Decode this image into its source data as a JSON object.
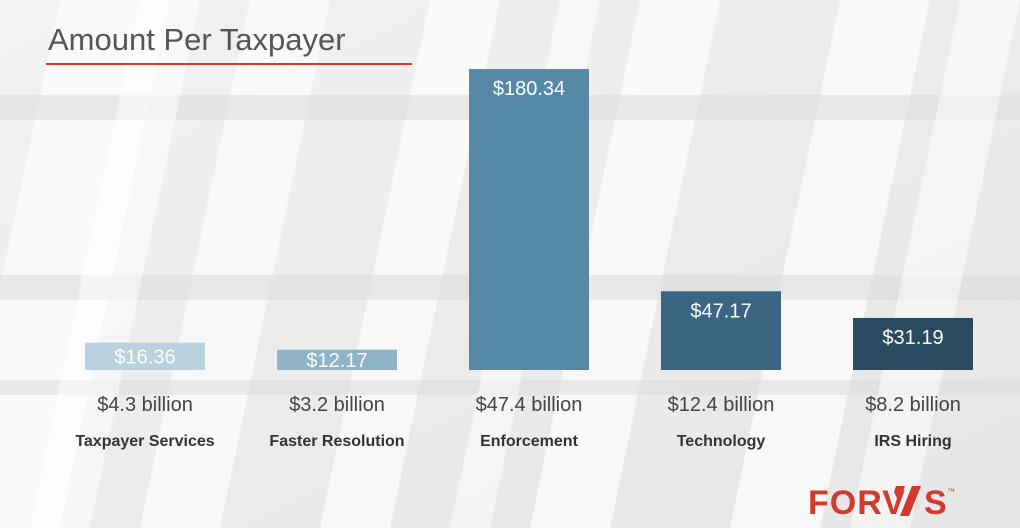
{
  "chart_data": {
    "type": "bar",
    "title": "Amount Per Taxpayer",
    "categories": [
      "Taxpayer Services",
      "Faster Resolution",
      "Enforcement",
      "Technology",
      "IRS Hiring"
    ],
    "values": [
      16.36,
      12.17,
      180.34,
      47.17,
      31.19
    ],
    "value_labels": [
      "$16.36",
      "$12.17",
      "$180.34",
      "$47.17",
      "$31.19"
    ],
    "totals": [
      "$4.3 billion",
      "$3.2 billion",
      "$47.4 billion",
      "$12.4 billion",
      "$8.2 billion"
    ],
    "colors": [
      "#b8d1dd",
      "#8fb3c7",
      "#5689a7",
      "#3a6683",
      "#294a61"
    ],
    "ylim": [
      0,
      180.34
    ],
    "grid": false,
    "legend": "none"
  },
  "logo": {
    "text": "FORV/S",
    "tm": "™",
    "color": "#d23a2c"
  }
}
